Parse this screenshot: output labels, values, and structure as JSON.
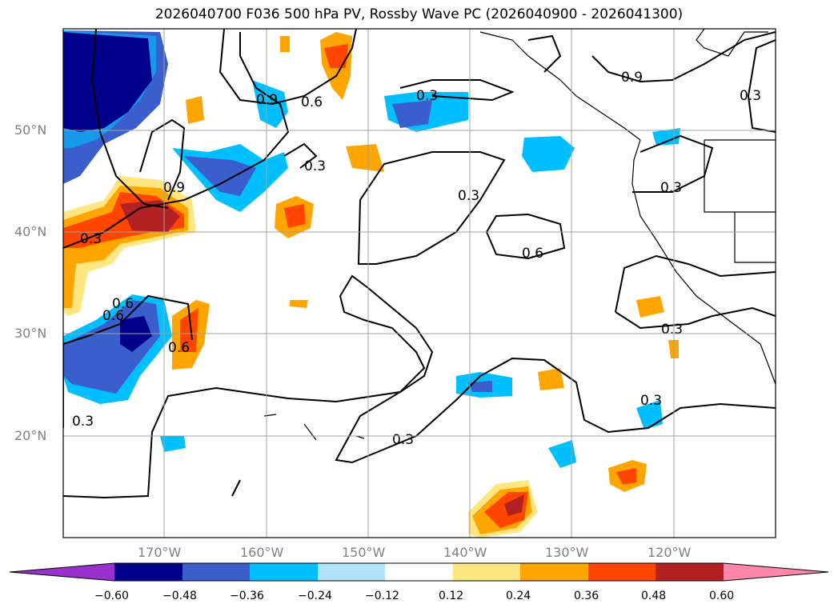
{
  "title": "2026040700 F036 500 hPa PV, Rossby Wave PC (2026040900 - 2026041300)",
  "lat_labels": [
    "50°N",
    "40°N",
    "30°N",
    "20°N"
  ],
  "lon_labels": [
    "170°W",
    "160°W",
    "150°W",
    "140°W",
    "130°W",
    "120°W"
  ],
  "contour_labels": [
    "0.9",
    "0.6",
    "0.3",
    "0.3",
    "0.9",
    "0.3",
    "0.3",
    "0.3",
    "0.9",
    "0.3",
    "0.3",
    "0.6",
    "0.6",
    "0.6",
    "0.6",
    "0.3",
    "0.3",
    "0.3"
  ],
  "colorbar": {
    "ticks": [
      "−0.60",
      "−0.48",
      "−0.36",
      "−0.24",
      "−0.12",
      "0.12",
      "0.24",
      "0.36",
      "0.48",
      "0.60"
    ],
    "colors": [
      "#9932cc",
      "#00008b",
      "#3a5fcd",
      "#00bfff",
      "#aee3fa",
      "#ffffff",
      "#ffe680",
      "#ffa500",
      "#ff4500",
      "#b22222",
      "#ff88aa"
    ]
  }
}
